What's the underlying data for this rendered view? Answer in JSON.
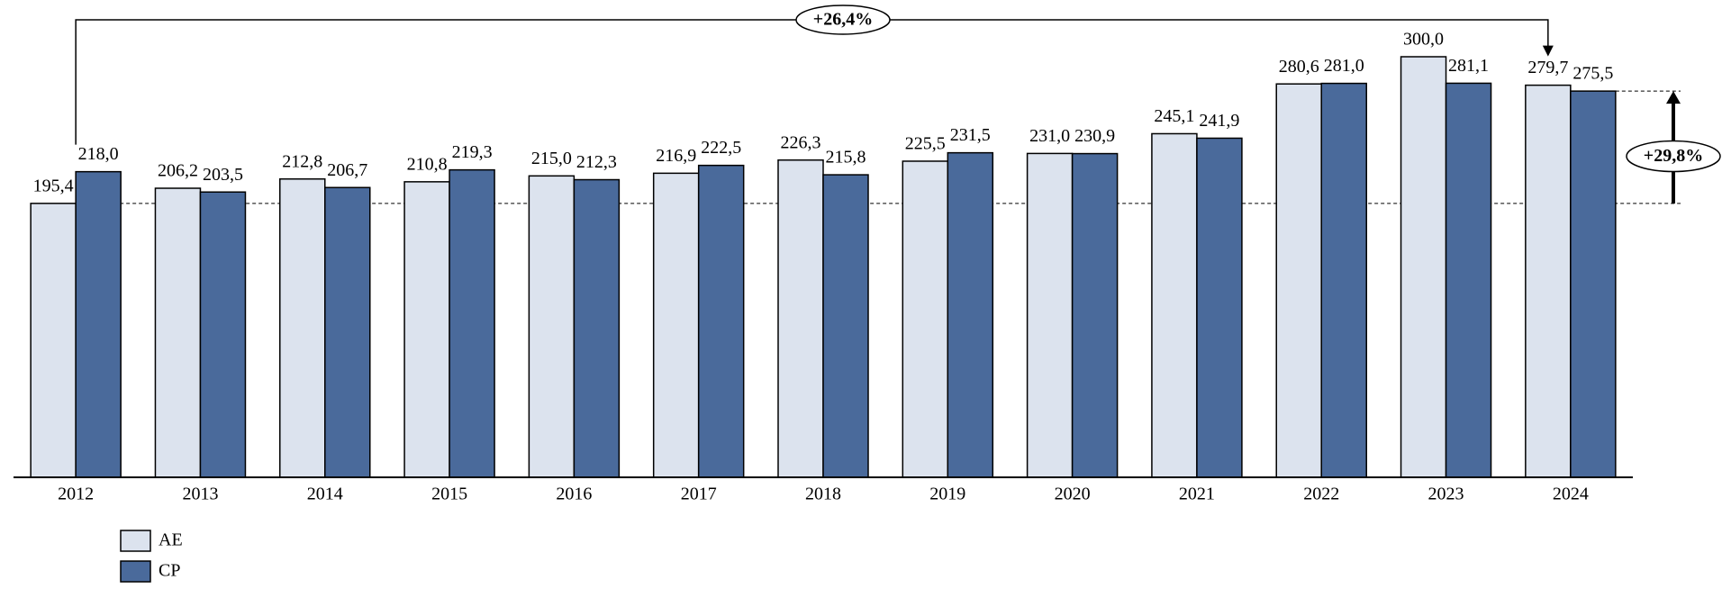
{
  "chart_data": {
    "type": "bar",
    "categories": [
      "2012",
      "2013",
      "2014",
      "2015",
      "2016",
      "2017",
      "2018",
      "2019",
      "2020",
      "2021",
      "2022",
      "2023",
      "2024"
    ],
    "series": [
      {
        "name": "AE",
        "color": "#dce3ee",
        "values": [
          195.4,
          206.2,
          212.8,
          210.8,
          215.0,
          216.9,
          226.3,
          225.5,
          231.0,
          245.1,
          280.6,
          300.0,
          279.7
        ],
        "value_labels": [
          "195,4",
          "206,2",
          "212,8",
          "210,8",
          "215,0",
          "216,9",
          "226,3",
          "225,5",
          "231,0",
          "245,1",
          "280,6",
          "300,0",
          "279,7"
        ]
      },
      {
        "name": "CP",
        "color": "#4a6a9b",
        "values": [
          218.0,
          203.5,
          206.7,
          219.3,
          212.3,
          222.5,
          215.8,
          231.5,
          230.9,
          241.9,
          281.0,
          281.1,
          275.5
        ],
        "value_labels": [
          "218,0",
          "203,5",
          "206,7",
          "219,3",
          "212,3",
          "222,5",
          "215,8",
          "231,5",
          "230,9",
          "241,9",
          "281,0",
          "281,1",
          "275,5"
        ]
      }
    ],
    "ylim": [
      0,
      300
    ],
    "legend": "bottom-left",
    "annotations": [
      {
        "text": "+26,4%"
      },
      {
        "text": "+29,8%"
      }
    ]
  }
}
